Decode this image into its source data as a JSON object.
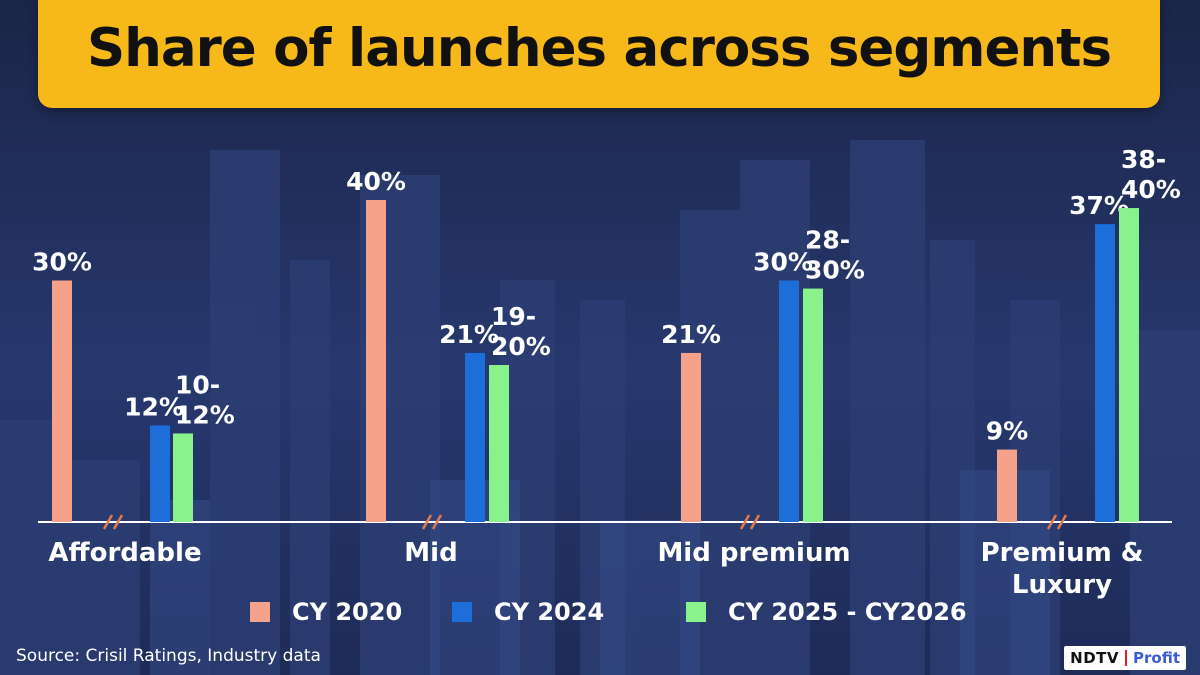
{
  "title": "Share of launches across segments",
  "source": "Source: Crisil Ratings, Industry data",
  "brand": {
    "left": "NDTV",
    "right": "Profit"
  },
  "colors": {
    "cy2020": "#f6a189",
    "cy2024": "#1c6ed8",
    "cy2025": "#8af28a",
    "title_bg": "#f7b91a",
    "break_mark": "#e07a50"
  },
  "chart_data": {
    "type": "bar",
    "title": "Share of launches across segments",
    "categories": [
      "Affordable",
      "Mid",
      "Mid premium",
      "Premium & Luxury"
    ],
    "category_label_lines": [
      [
        "Affordable"
      ],
      [
        "Mid"
      ],
      [
        "Mid premium"
      ],
      [
        "Premium &",
        "Luxury"
      ]
    ],
    "unit": "%",
    "ylim": [
      0,
      42
    ],
    "grid": false,
    "legend_position": "bottom",
    "series": [
      {
        "name": "CY 2020",
        "values": [
          30,
          40,
          21,
          9
        ],
        "labels": [
          [
            "30%"
          ],
          [
            "40%"
          ],
          [
            "21%"
          ],
          [
            "9%"
          ]
        ]
      },
      {
        "name": "CY 2024",
        "values": [
          12,
          21,
          30,
          37
        ],
        "labels": [
          [
            "12%"
          ],
          [
            "21%"
          ],
          [
            "30%"
          ],
          [
            "37%"
          ]
        ]
      },
      {
        "name": "CY 2025 - CY2026",
        "values": [
          11,
          19.5,
          29,
          39
        ],
        "labels": [
          [
            "10-",
            "12%"
          ],
          [
            "19-",
            "20%"
          ],
          [
            "28-",
            "30%"
          ],
          [
            "38-",
            "40%"
          ]
        ]
      }
    ],
    "axis_break_marks": true
  }
}
